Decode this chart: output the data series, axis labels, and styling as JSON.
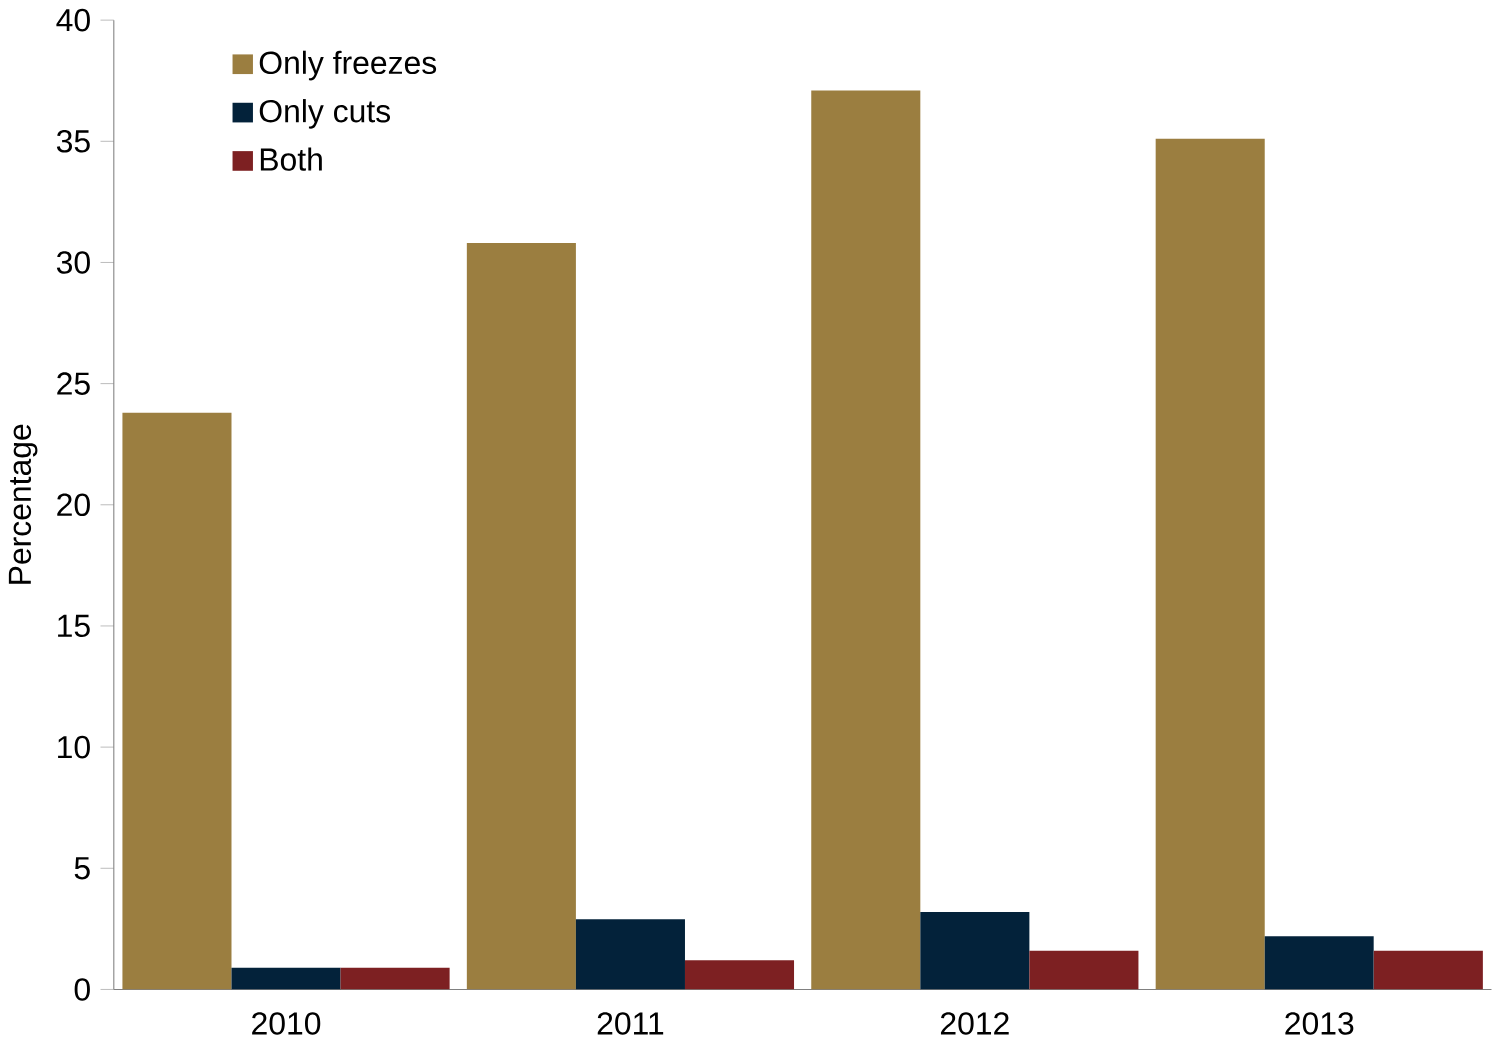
{
  "chart_data": {
    "type": "bar",
    "ylabel": "Percentage",
    "categories": [
      "2010",
      "2011",
      "2012",
      "2013"
    ],
    "series": [
      {
        "name": "Only freezes",
        "color": "#9b7e40",
        "values": [
          23.8,
          30.8,
          37.1,
          35.1
        ]
      },
      {
        "name": "Only cuts",
        "color": "#03223a",
        "values": [
          0.9,
          2.9,
          3.2,
          2.2
        ]
      },
      {
        "name": "Both",
        "color": "#7d2022",
        "values": [
          0.9,
          1.2,
          1.6,
          1.6
        ]
      }
    ],
    "ylim": [
      0,
      40
    ],
    "yticks": [
      0,
      5,
      10,
      15,
      20,
      25,
      30,
      35,
      40
    ],
    "grid": false,
    "legend": "top left"
  }
}
